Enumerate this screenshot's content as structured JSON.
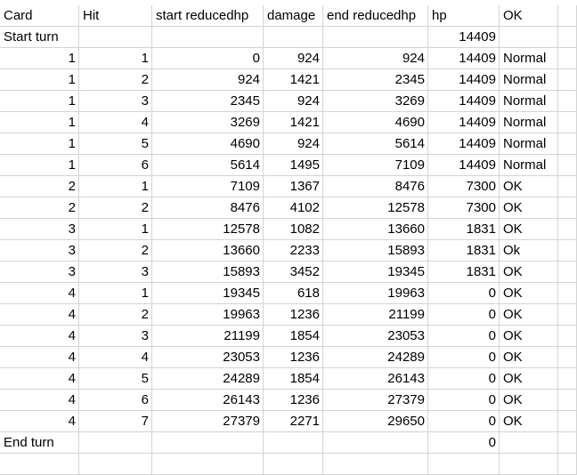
{
  "sheet": {
    "headers": [
      "Card",
      "Hit",
      "start reducedhp",
      "damage",
      "end reducedhp",
      "hp",
      "OK",
      ""
    ],
    "rows": [
      [
        "Start turn",
        "",
        "",
        "",
        "",
        "14409",
        "",
        ""
      ],
      [
        "1",
        "1",
        "0",
        "924",
        "924",
        "14409",
        "Normal",
        ""
      ],
      [
        "1",
        "2",
        "924",
        "1421",
        "2345",
        "14409",
        "Normal",
        ""
      ],
      [
        "1",
        "3",
        "2345",
        "924",
        "3269",
        "14409",
        "Normal",
        ""
      ],
      [
        "1",
        "4",
        "3269",
        "1421",
        "4690",
        "14409",
        "Normal",
        ""
      ],
      [
        "1",
        "5",
        "4690",
        "924",
        "5614",
        "14409",
        "Normal",
        ""
      ],
      [
        "1",
        "6",
        "5614",
        "1495",
        "7109",
        "14409",
        "Normal",
        ""
      ],
      [
        "2",
        "1",
        "7109",
        "1367",
        "8476",
        "7300",
        "OK",
        ""
      ],
      [
        "2",
        "2",
        "8476",
        "4102",
        "12578",
        "7300",
        "OK",
        ""
      ],
      [
        "3",
        "1",
        "12578",
        "1082",
        "13660",
        "1831",
        "OK",
        ""
      ],
      [
        "3",
        "2",
        "13660",
        "2233",
        "15893",
        "1831",
        "Ok",
        ""
      ],
      [
        "3",
        "3",
        "15893",
        "3452",
        "19345",
        "1831",
        "OK",
        ""
      ],
      [
        "4",
        "1",
        "19345",
        "618",
        "19963",
        "0",
        "OK",
        ""
      ],
      [
        "4",
        "2",
        "19963",
        "1236",
        "21199",
        "0",
        "OK",
        ""
      ],
      [
        "4",
        "3",
        "21199",
        "1854",
        "23053",
        "0",
        "OK",
        ""
      ],
      [
        "4",
        "4",
        "23053",
        "1236",
        "24289",
        "0",
        "OK",
        ""
      ],
      [
        "4",
        "5",
        "24289",
        "1854",
        "26143",
        "0",
        "OK",
        ""
      ],
      [
        "4",
        "6",
        "26143",
        "1236",
        "27379",
        "0",
        "OK",
        ""
      ],
      [
        "4",
        "7",
        "27379",
        "2271",
        "29650",
        "0",
        "OK",
        ""
      ],
      [
        "End turn",
        "",
        "",
        "",
        "",
        "0",
        "",
        ""
      ],
      [
        "",
        "",
        "",
        "",
        "",
        "",
        "",
        ""
      ]
    ]
  }
}
